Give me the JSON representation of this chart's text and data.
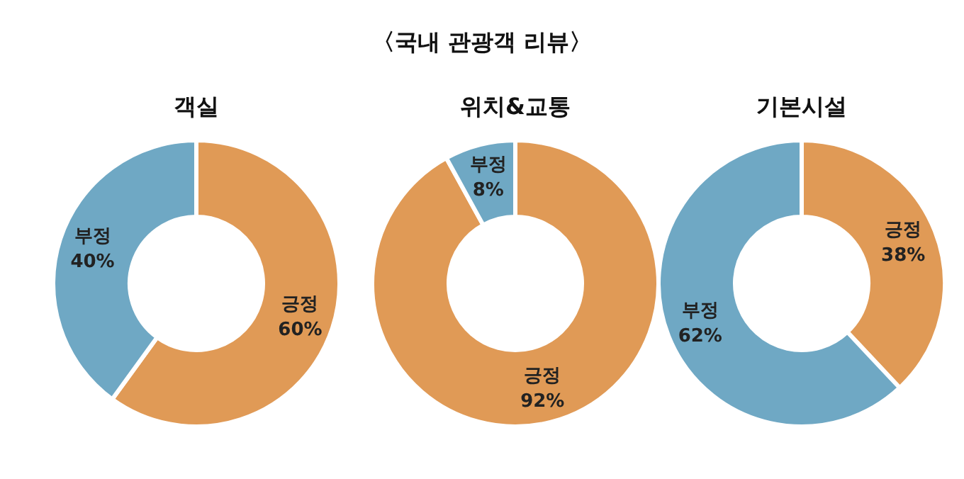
{
  "chart_data": [
    {
      "type": "donut",
      "title": "객실",
      "annotations": [
        "〈국내 관광객 리뷰〉"
      ],
      "categories": [
        "긍정",
        "부정"
      ],
      "values": [
        60,
        40
      ],
      "value_labels": [
        "60%",
        "40%"
      ],
      "colors": [
        "#e09a56",
        "#6fa8c4"
      ],
      "legend": false
    },
    {
      "type": "donut",
      "title": "위치&교통",
      "categories": [
        "긍정",
        "부정"
      ],
      "values": [
        92,
        8
      ],
      "value_labels": [
        "92%",
        "8%"
      ],
      "colors": [
        "#e09a56",
        "#6fa8c4"
      ],
      "legend": false
    },
    {
      "type": "donut",
      "title": "기본시설",
      "categories": [
        "긍정",
        "부정"
      ],
      "values": [
        38,
        62
      ],
      "value_labels": [
        "38%",
        "62%"
      ],
      "colors": [
        "#e09a56",
        "#6fa8c4"
      ],
      "legend": false
    }
  ]
}
